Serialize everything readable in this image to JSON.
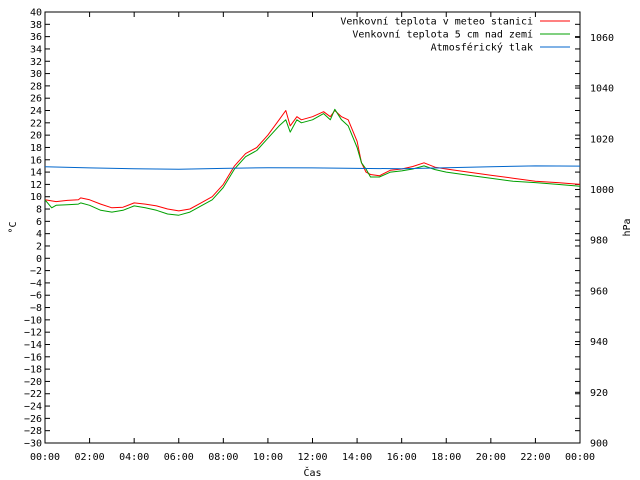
{
  "chart_data": {
    "type": "line",
    "xlabel": "Čas",
    "ylabel": "°C",
    "y2label": "hPa",
    "xlim": [
      0,
      24
    ],
    "ylim": [
      -30,
      40
    ],
    "y2lim": [
      900,
      1070
    ],
    "x_ticks": [
      "00:00",
      "02:00",
      "04:00",
      "06:00",
      "08:00",
      "10:00",
      "12:00",
      "14:00",
      "16:00",
      "18:00",
      "20:00",
      "22:00",
      "00:00"
    ],
    "y_ticks": [
      40,
      38,
      36,
      34,
      32,
      30,
      28,
      26,
      24,
      22,
      20,
      18,
      16,
      14,
      12,
      10,
      8,
      6,
      4,
      2,
      0,
      -2,
      -4,
      -6,
      -8,
      -10,
      -12,
      -14,
      -16,
      -18,
      -20,
      -22,
      -24,
      -26,
      -28,
      -30
    ],
    "y2_ticks": [
      1060,
      1040,
      1020,
      1000,
      980,
      960,
      940,
      920,
      900
    ],
    "grid": false,
    "legend_position": "top-right",
    "series": [
      {
        "name": "Venkovní teplota v meteo stanici",
        "axis": "left",
        "color": "#ff0000",
        "x": [
          0,
          0.5,
          1,
          1.5,
          1.6,
          2,
          2.5,
          3,
          3.5,
          4,
          4.5,
          5,
          5.5,
          6,
          6.5,
          7,
          7.5,
          8,
          8.5,
          9,
          9.5,
          10,
          10.5,
          10.8,
          11,
          11.3,
          11.5,
          12,
          12.5,
          12.8,
          13,
          13.3,
          13.6,
          14,
          14.2,
          14.4,
          14.6,
          15,
          15.5,
          16,
          16.5,
          17,
          17.5,
          18,
          19,
          20,
          21,
          22,
          23,
          24
        ],
        "y": [
          9.5,
          9.2,
          9.4,
          9.5,
          9.8,
          9.5,
          8.8,
          8.2,
          8.3,
          9,
          8.8,
          8.5,
          8,
          7.7,
          8,
          9,
          10,
          12,
          15,
          17,
          18,
          20,
          22.5,
          24,
          21.5,
          23,
          22.5,
          23,
          23.8,
          23,
          24,
          23,
          22.5,
          19,
          15.5,
          14,
          13.6,
          13.4,
          14.3,
          14.5,
          14.9,
          15.5,
          14.8,
          14.5,
          14,
          13.5,
          13,
          12.5,
          12.3,
          12
        ]
      },
      {
        "name": "Venkovní teplota 5 cm nad zemí",
        "axis": "left",
        "color": "#00a000",
        "x": [
          0,
          0.3,
          0.5,
          1,
          1.5,
          1.6,
          2,
          2.5,
          3,
          3.5,
          4,
          4.5,
          5,
          5.5,
          6,
          6.5,
          7,
          7.5,
          8,
          8.5,
          9,
          9.5,
          10,
          10.5,
          10.8,
          11,
          11.3,
          11.5,
          12,
          12.5,
          12.8,
          13,
          13.3,
          13.6,
          14,
          14.2,
          14.4,
          14.6,
          15,
          15.5,
          16,
          16.5,
          17,
          17.5,
          18,
          19,
          20,
          21,
          22,
          23,
          24
        ],
        "y": [
          9.5,
          8.2,
          8.6,
          8.7,
          8.8,
          9,
          8.6,
          7.8,
          7.5,
          7.8,
          8.5,
          8.2,
          7.8,
          7.2,
          7,
          7.5,
          8.5,
          9.5,
          11.5,
          14.5,
          16.5,
          17.5,
          19.5,
          21.5,
          22.5,
          20.5,
          22.5,
          22,
          22.5,
          23.5,
          22.5,
          24.2,
          22.5,
          21.5,
          18,
          15.5,
          14.5,
          13.2,
          13.2,
          14,
          14.2,
          14.5,
          15,
          14.4,
          14,
          13.5,
          13,
          12.5,
          12.3,
          12,
          11.7
        ]
      },
      {
        "name": "Atmosférický tlak",
        "axis": "right",
        "color": "#0066cc",
        "x": [
          0,
          2,
          4,
          6,
          8,
          10,
          12,
          14,
          16,
          18,
          20,
          22,
          24
        ],
        "y": [
          1009,
          1008.5,
          1008.2,
          1008,
          1008.3,
          1008.6,
          1008.5,
          1008.3,
          1008.2,
          1008.6,
          1009,
          1009.3,
          1009.2
        ]
      }
    ]
  }
}
